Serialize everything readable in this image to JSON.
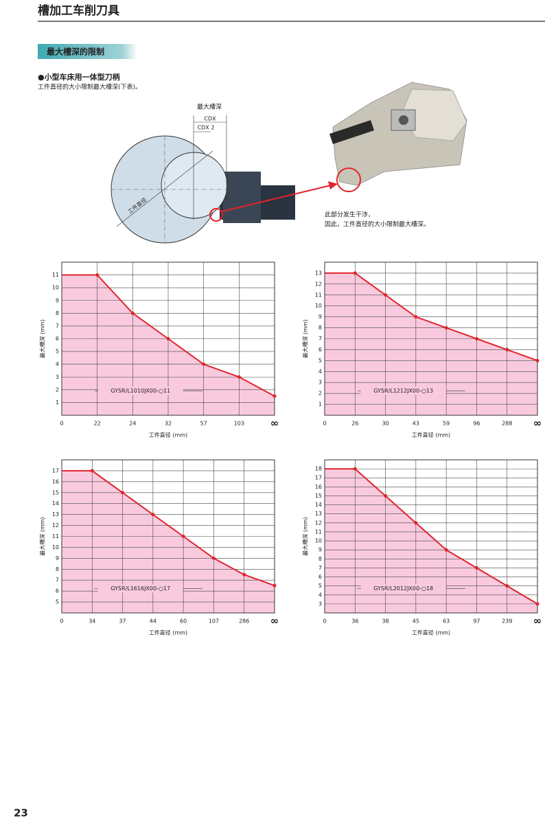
{
  "header": {
    "title": "槽加工车削刀具"
  },
  "section": {
    "title": "最大槽深的限制"
  },
  "subsection": {
    "title": "●小型车床用一体型刀柄",
    "text": "工件直径的大小限制最大槽深(下表)。"
  },
  "diagram": {
    "labels": [
      "最大槽深",
      "CDX",
      "CDX 2",
      "工件直径"
    ],
    "note": [
      "此部分发生干涉，",
      "因此，工件直径的大小限制最大槽深。"
    ]
  },
  "chart_data": [
    {
      "type": "area",
      "annotation": "GYSR/L1010JX00-○11",
      "xlabel": "工件直径 (mm)",
      "ylabel": "最大槽深 (mm)",
      "categories": [
        "0",
        "22",
        "24",
        "32",
        "57",
        "103",
        "∞"
      ],
      "values": [
        11,
        11,
        8,
        6,
        4,
        3,
        1.5
      ],
      "ylim": [
        0,
        12
      ],
      "yticks": [
        1,
        2,
        3,
        4,
        5,
        6,
        7,
        8,
        9,
        10,
        11
      ],
      "grid": true,
      "color": "#e0242c",
      "area_color": "#f9cade"
    },
    {
      "type": "area",
      "annotation": "GYSR/L1212JX00-○13",
      "xlabel": "工件直径 (mm)",
      "ylabel": "最大槽深 (mm)",
      "categories": [
        "0",
        "26",
        "30",
        "43",
        "59",
        "96",
        "288",
        "∞"
      ],
      "values": [
        13,
        13,
        11,
        9,
        8,
        7,
        6,
        5
      ],
      "ylim": [
        0,
        14
      ],
      "yticks": [
        1,
        2,
        3,
        4,
        5,
        6,
        7,
        8,
        9,
        10,
        11,
        12,
        13
      ],
      "grid": true,
      "color": "#e0242c",
      "area_color": "#f9cade"
    },
    {
      "type": "area",
      "annotation": "GYSR/L1616JX00-○17",
      "xlabel": "工件直径 (mm)",
      "ylabel": "最大槽深 (mm)",
      "categories": [
        "0",
        "34",
        "37",
        "44",
        "60",
        "107",
        "286",
        "∞"
      ],
      "values": [
        17,
        17,
        15,
        13,
        11,
        9,
        7.5,
        6.5
      ],
      "ylim": [
        4,
        18
      ],
      "yticks": [
        5,
        6,
        7,
        8,
        9,
        10,
        11,
        12,
        13,
        14,
        15,
        16,
        17
      ],
      "grid": true,
      "color": "#e0242c",
      "area_color": "#f9cade"
    },
    {
      "type": "area",
      "annotation": "GYSR/L2012JX00-○18",
      "xlabel": "工件直径 (mm)",
      "ylabel": "最大槽深 (mm)",
      "categories": [
        "0",
        "36",
        "38",
        "45",
        "63",
        "97",
        "239",
        "∞"
      ],
      "values": [
        18,
        18,
        15,
        12,
        9,
        7,
        5,
        3
      ],
      "ylim": [
        2,
        19
      ],
      "yticks": [
        3,
        4,
        5,
        6,
        7,
        8,
        9,
        10,
        11,
        12,
        13,
        14,
        15,
        16,
        17,
        18
      ],
      "grid": true,
      "color": "#e0242c",
      "area_color": "#f9cade"
    }
  ],
  "footer": {
    "page": "23"
  }
}
